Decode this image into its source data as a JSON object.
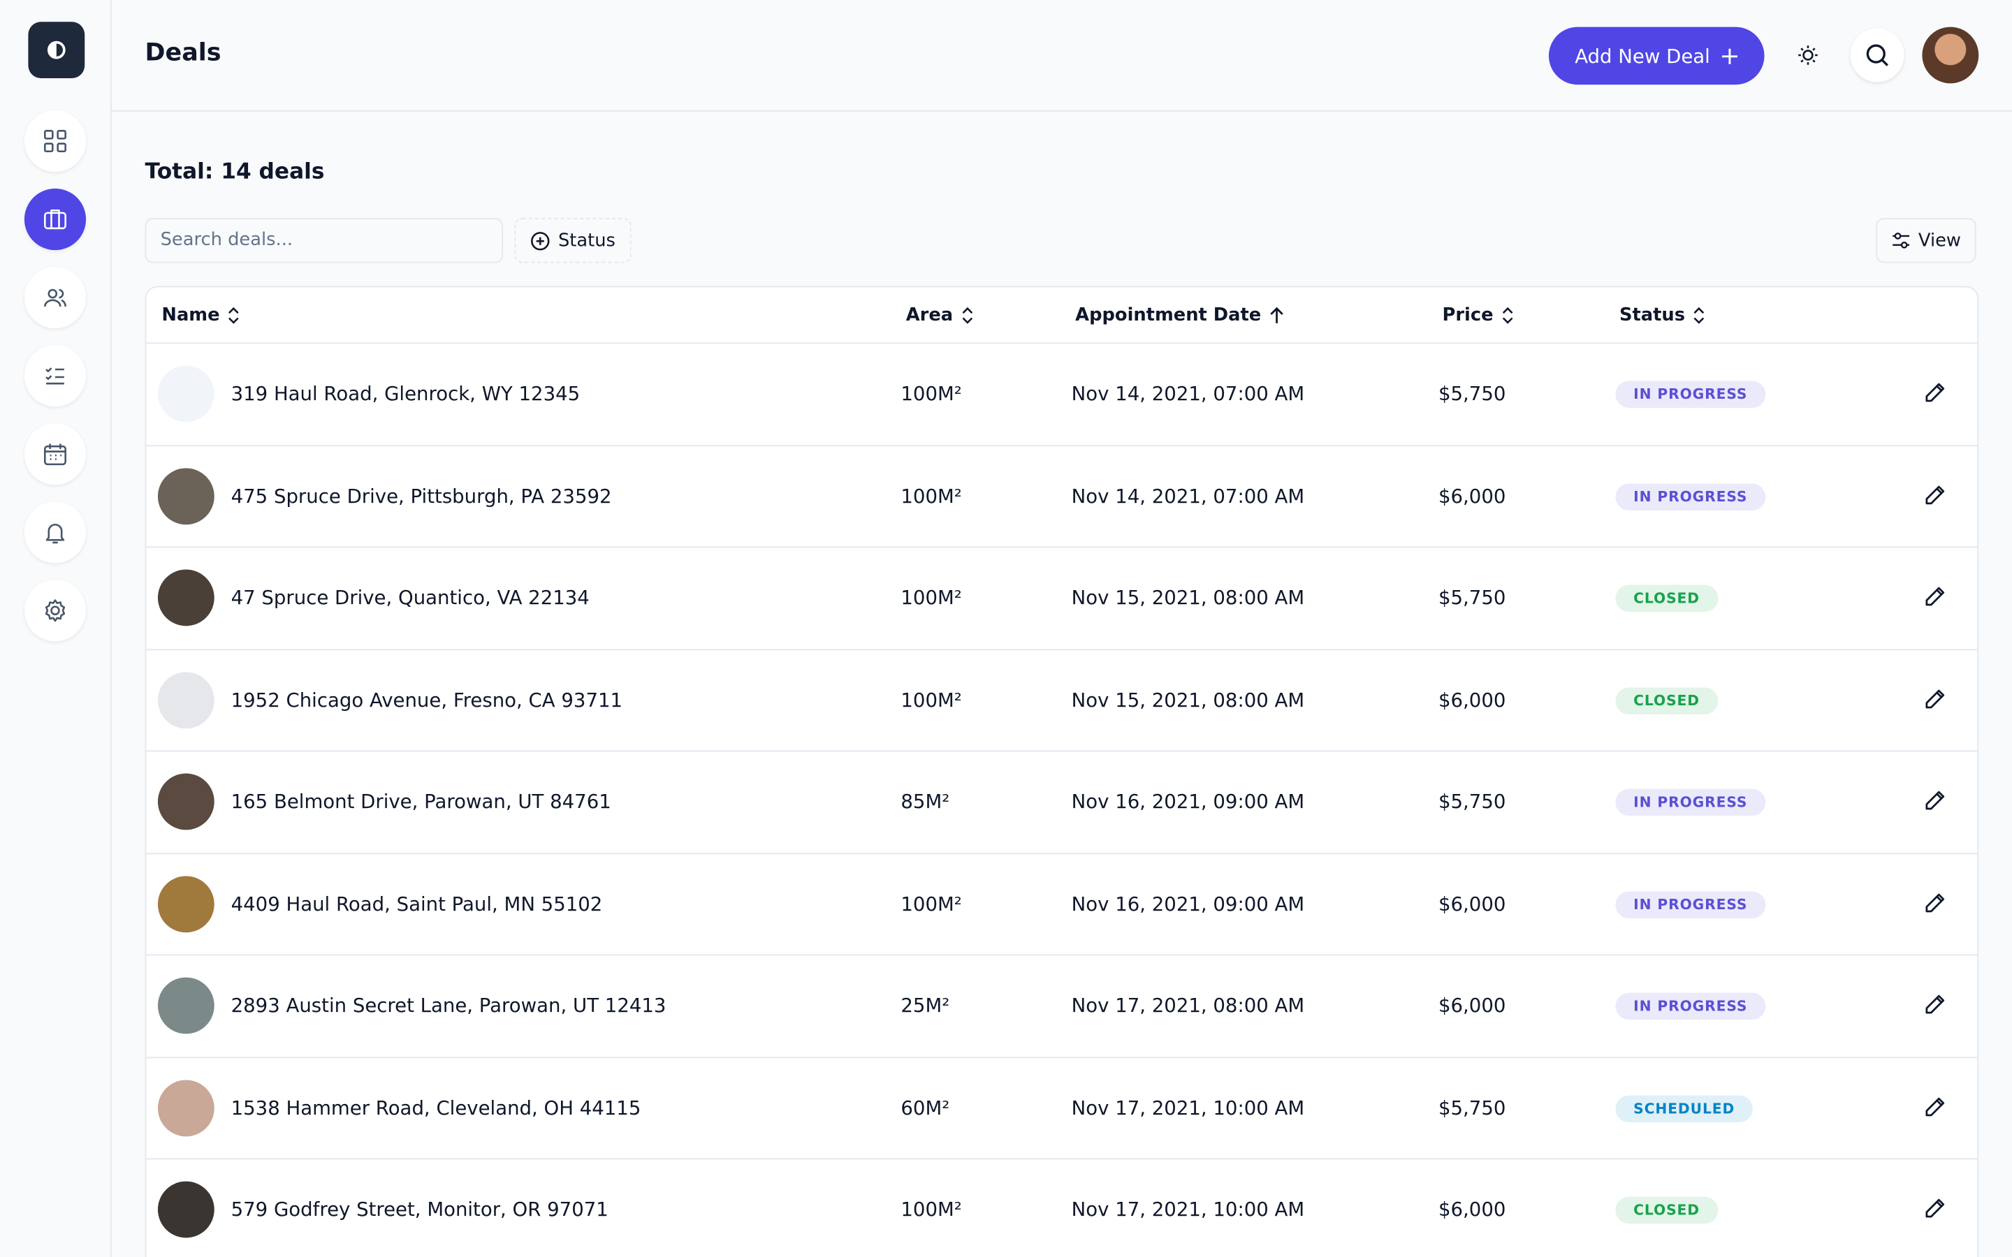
{
  "sidebar": {
    "active_index": 1
  },
  "header": {
    "title": "Deals",
    "add_button": "Add New Deal"
  },
  "toolbar": {
    "total": "Total: 14 deals",
    "search_placeholder": "Search deals...",
    "status_filter": "Status",
    "view_button": "View"
  },
  "table": {
    "columns": [
      "Name",
      "Area",
      "Appointment Date",
      "Price",
      "Status"
    ],
    "rows": [
      {
        "name": "319 Haul Road, Glenrock, WY 12345",
        "area": "100M²",
        "date": "Nov 14, 2021, 07:00 AM",
        "price": "$5,750",
        "status": "IN PROGRESS",
        "status_color": "#5b4fd6",
        "thumb_color": "#f1f5f9"
      },
      {
        "name": "475 Spruce Drive, Pittsburgh, PA 23592",
        "area": "100M²",
        "date": "Nov 14, 2021, 07:00 AM",
        "price": "$6,000",
        "status": "IN PROGRESS",
        "status_color": "#5b4fd6",
        "thumb_color": "#6b6258"
      },
      {
        "name": "47 Spruce Drive, Quantico, VA 22134",
        "area": "100M²",
        "date": "Nov 15, 2021, 08:00 AM",
        "price": "$5,750",
        "status": "CLOSED",
        "status_color": "#16a34a",
        "thumb_color": "#4a4038"
      },
      {
        "name": "1952 Chicago Avenue, Fresno, CA 93711",
        "area": "100M²",
        "date": "Nov 15, 2021, 08:00 AM",
        "price": "$6,000",
        "status": "CLOSED",
        "status_color": "#16a34a",
        "thumb_color": "#e5e7eb"
      },
      {
        "name": "165 Belmont Drive, Parowan, UT 84761",
        "area": "85M²",
        "date": "Nov 16, 2021, 09:00 AM",
        "price": "$5,750",
        "status": "IN PROGRESS",
        "status_color": "#5b4fd6",
        "thumb_color": "#5a4a40"
      },
      {
        "name": "4409 Haul Road, Saint Paul, MN 55102",
        "area": "100M²",
        "date": "Nov 16, 2021, 09:00 AM",
        "price": "$6,000",
        "status": "IN PROGRESS",
        "status_color": "#5b4fd6",
        "thumb_color": "#a07a3c"
      },
      {
        "name": "2893 Austin Secret Lane, Parowan, UT 12413",
        "area": "25M²",
        "date": "Nov 17, 2021, 08:00 AM",
        "price": "$6,000",
        "status": "IN PROGRESS",
        "status_color": "#5b4fd6",
        "thumb_color": "#7b8a88"
      },
      {
        "name": "1538 Hammer Road, Cleveland, OH 44115",
        "area": "60M²",
        "date": "Nov 17, 2021, 10:00 AM",
        "price": "$5,750",
        "status": "SCHEDULED",
        "status_color": "#0284c7",
        "thumb_color": "#c9a898"
      },
      {
        "name": "579 Godfrey Street, Monitor, OR 97071",
        "area": "100M²",
        "date": "Nov 17, 2021, 10:00 AM",
        "price": "$6,000",
        "status": "CLOSED",
        "status_color": "#16a34a",
        "thumb_color": "#3a3530"
      }
    ]
  }
}
